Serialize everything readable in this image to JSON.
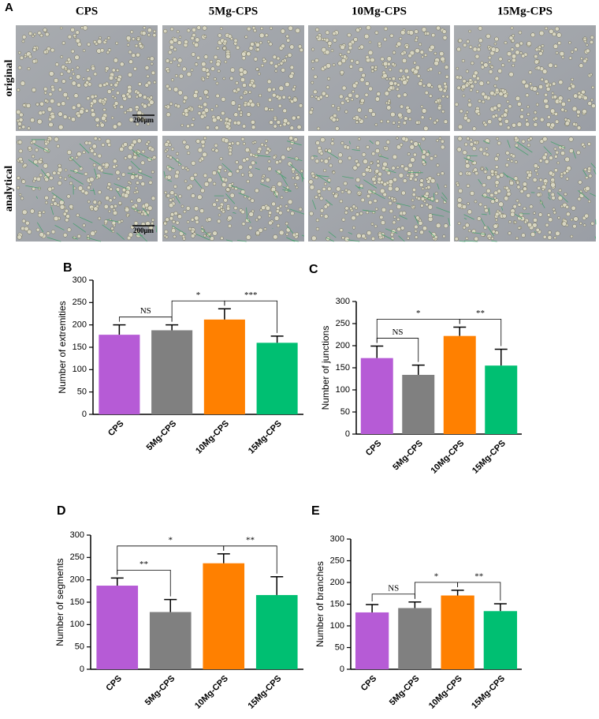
{
  "panel_a": {
    "label": "A",
    "columns": [
      "CPS",
      "5Mg-CPS",
      "10Mg-CPS",
      "15Mg-CPS"
    ],
    "rows": [
      "original",
      "analytical"
    ],
    "scale_bar": "200μm"
  },
  "chart_data": [
    {
      "type": "bar",
      "panel": "B",
      "ylabel": "Number of extremities",
      "categories": [
        "CPS",
        "5Mg-CPS",
        "10Mg-CPS",
        "15Mg-CPS"
      ],
      "values": [
        178,
        188,
        212,
        160
      ],
      "errors": [
        22,
        12,
        24,
        15
      ],
      "colors": [
        "#b65bd6",
        "#808080",
        "#ff8000",
        "#00bf72"
      ],
      "ylim": [
        0,
        300
      ],
      "yticks": [
        0,
        50,
        100,
        150,
        200,
        250,
        300
      ],
      "annotations": [
        {
          "text": "NS",
          "from": 0,
          "to": 1
        },
        {
          "text": "*",
          "from": 1,
          "to": 2
        },
        {
          "text": "***",
          "from": 2,
          "to": 3
        }
      ]
    },
    {
      "type": "bar",
      "panel": "C",
      "ylabel": "Number of junctions",
      "categories": [
        "CPS",
        "5Mg-CPS",
        "10Mg-CPS",
        "15Mg-CPS"
      ],
      "values": [
        172,
        134,
        222,
        155
      ],
      "errors": [
        27,
        22,
        20,
        37
      ],
      "colors": [
        "#b65bd6",
        "#808080",
        "#ff8000",
        "#00bf72"
      ],
      "ylim": [
        0,
        300
      ],
      "yticks": [
        0,
        50,
        100,
        150,
        200,
        250,
        300
      ],
      "annotations": [
        {
          "text": "NS",
          "from": 0,
          "to": 1
        },
        {
          "text": "*",
          "from": 0,
          "to": 2
        },
        {
          "text": "**",
          "from": 2,
          "to": 3
        }
      ]
    },
    {
      "type": "bar",
      "panel": "D",
      "ylabel": "Number of segments",
      "categories": [
        "CPS",
        "5Mg-CPS",
        "10Mg-CPS",
        "15Mg-CPS"
      ],
      "values": [
        187,
        128,
        237,
        166
      ],
      "errors": [
        17,
        28,
        21,
        41
      ],
      "colors": [
        "#b65bd6",
        "#808080",
        "#ff8000",
        "#00bf72"
      ],
      "ylim": [
        0,
        300
      ],
      "yticks": [
        0,
        50,
        100,
        150,
        200,
        250,
        300
      ],
      "annotations": [
        {
          "text": "**",
          "from": 0,
          "to": 1
        },
        {
          "text": "*",
          "from": 0,
          "to": 2
        },
        {
          "text": "**",
          "from": 2,
          "to": 3
        }
      ]
    },
    {
      "type": "bar",
      "panel": "E",
      "ylabel": "Number of branches",
      "categories": [
        "CPS",
        "5Mg-CPS",
        "10Mg-CPS",
        "15Mg-CPS"
      ],
      "values": [
        131,
        141,
        170,
        134
      ],
      "errors": [
        18,
        14,
        12,
        17
      ],
      "colors": [
        "#b65bd6",
        "#808080",
        "#ff8000",
        "#00bf72"
      ],
      "ylim": [
        0,
        300
      ],
      "yticks": [
        0,
        50,
        100,
        150,
        200,
        250,
        300
      ],
      "annotations": [
        {
          "text": "NS",
          "from": 0,
          "to": 1
        },
        {
          "text": "*",
          "from": 1,
          "to": 2
        },
        {
          "text": "**",
          "from": 2,
          "to": 3
        }
      ]
    }
  ]
}
